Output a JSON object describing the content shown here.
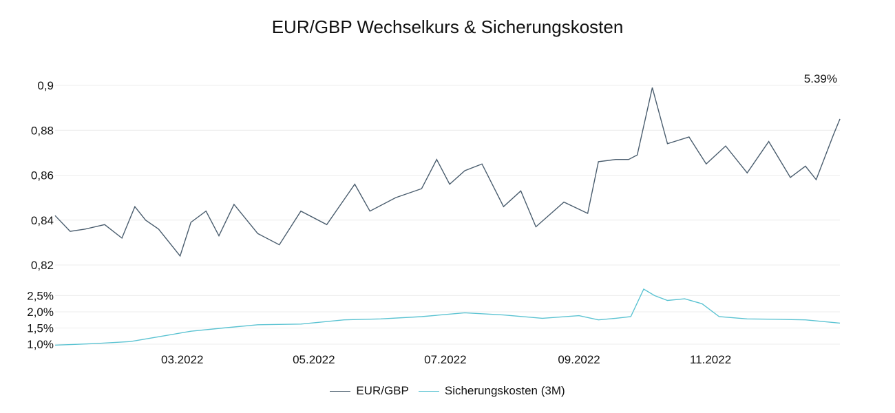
{
  "title": "EUR/GBP Wechselkurs & Sicherungskosten",
  "annotation": "5.39%",
  "legend": {
    "series1": "EUR/GBP",
    "series2": "Sicherungskosten (3M)"
  },
  "colors": {
    "eurgbp": "#4a5d6e",
    "hedge": "#5bc3d2"
  },
  "chart_data": [
    {
      "type": "line",
      "name": "upper",
      "ylim": [
        0.82,
        0.9
      ],
      "yticks": [
        "0,82",
        "0,84",
        "0,86",
        "0,88",
        "0,9"
      ],
      "ytick_values": [
        0.82,
        0.84,
        0.86,
        0.88,
        0.9
      ],
      "grid": true,
      "series": [
        {
          "name": "EUR/GBP",
          "x": [
            "2022-01-01",
            "2022-01-08",
            "2022-01-15",
            "2022-01-24",
            "2022-02-01",
            "2022-02-07",
            "2022-02-12",
            "2022-02-18",
            "2022-02-28",
            "2022-03-05",
            "2022-03-12",
            "2022-03-18",
            "2022-03-25",
            "2022-04-05",
            "2022-04-15",
            "2022-04-25",
            "2022-05-07",
            "2022-05-20",
            "2022-05-27",
            "2022-06-08",
            "2022-06-20",
            "2022-06-27",
            "2022-07-03",
            "2022-07-10",
            "2022-07-18",
            "2022-07-28",
            "2022-08-05",
            "2022-08-12",
            "2022-08-25",
            "2022-09-05",
            "2022-09-10",
            "2022-09-18",
            "2022-09-24",
            "2022-09-28",
            "2022-10-05",
            "2022-10-12",
            "2022-10-22",
            "2022-10-30",
            "2022-11-08",
            "2022-11-18",
            "2022-11-28",
            "2022-12-08",
            "2022-12-15",
            "2022-12-20",
            "2022-12-28",
            "2022-12-31"
          ],
          "values": [
            0.842,
            0.835,
            0.836,
            0.838,
            0.832,
            0.846,
            0.84,
            0.836,
            0.824,
            0.839,
            0.844,
            0.833,
            0.847,
            0.834,
            0.829,
            0.844,
            0.838,
            0.856,
            0.844,
            0.85,
            0.854,
            0.867,
            0.856,
            0.862,
            0.865,
            0.846,
            0.853,
            0.837,
            0.848,
            0.843,
            0.866,
            0.867,
            0.867,
            0.869,
            0.899,
            0.874,
            0.877,
            0.865,
            0.873,
            0.861,
            0.875,
            0.859,
            0.864,
            0.858,
            0.878,
            0.885
          ]
        }
      ]
    },
    {
      "type": "line",
      "name": "lower",
      "ylim": [
        1.0,
        2.7
      ],
      "yticks": [
        "1,0%",
        "1,5%",
        "2,0%",
        "2,5%"
      ],
      "ytick_values": [
        1.0,
        1.5,
        2.0,
        2.5
      ],
      "xticks": [
        "03.2022",
        "05.2022",
        "07.2022",
        "09.2022",
        "11.2022"
      ],
      "xtick_values": [
        "2022-03-01",
        "2022-05-01",
        "2022-07-01",
        "2022-09-01",
        "2022-11-01"
      ],
      "xlim": [
        "2022-01-01",
        "2022-12-31"
      ],
      "series": [
        {
          "name": "Sicherungskosten (3M)",
          "x": [
            "2022-01-01",
            "2022-01-20",
            "2022-02-05",
            "2022-02-20",
            "2022-03-05",
            "2022-03-20",
            "2022-04-05",
            "2022-04-25",
            "2022-05-15",
            "2022-06-01",
            "2022-06-20",
            "2022-07-10",
            "2022-07-28",
            "2022-08-15",
            "2022-09-01",
            "2022-09-10",
            "2022-09-18",
            "2022-09-25",
            "2022-10-01",
            "2022-10-06",
            "2022-10-12",
            "2022-10-20",
            "2022-10-28",
            "2022-11-05",
            "2022-11-18",
            "2022-12-01",
            "2022-12-15",
            "2022-12-31"
          ],
          "values": [
            0.97,
            1.02,
            1.08,
            1.25,
            1.4,
            1.5,
            1.6,
            1.62,
            1.75,
            1.78,
            1.85,
            1.97,
            1.9,
            1.8,
            1.88,
            1.75,
            1.8,
            1.85,
            2.7,
            2.5,
            2.35,
            2.4,
            2.25,
            1.85,
            1.78,
            1.77,
            1.75,
            1.65
          ]
        }
      ]
    }
  ]
}
